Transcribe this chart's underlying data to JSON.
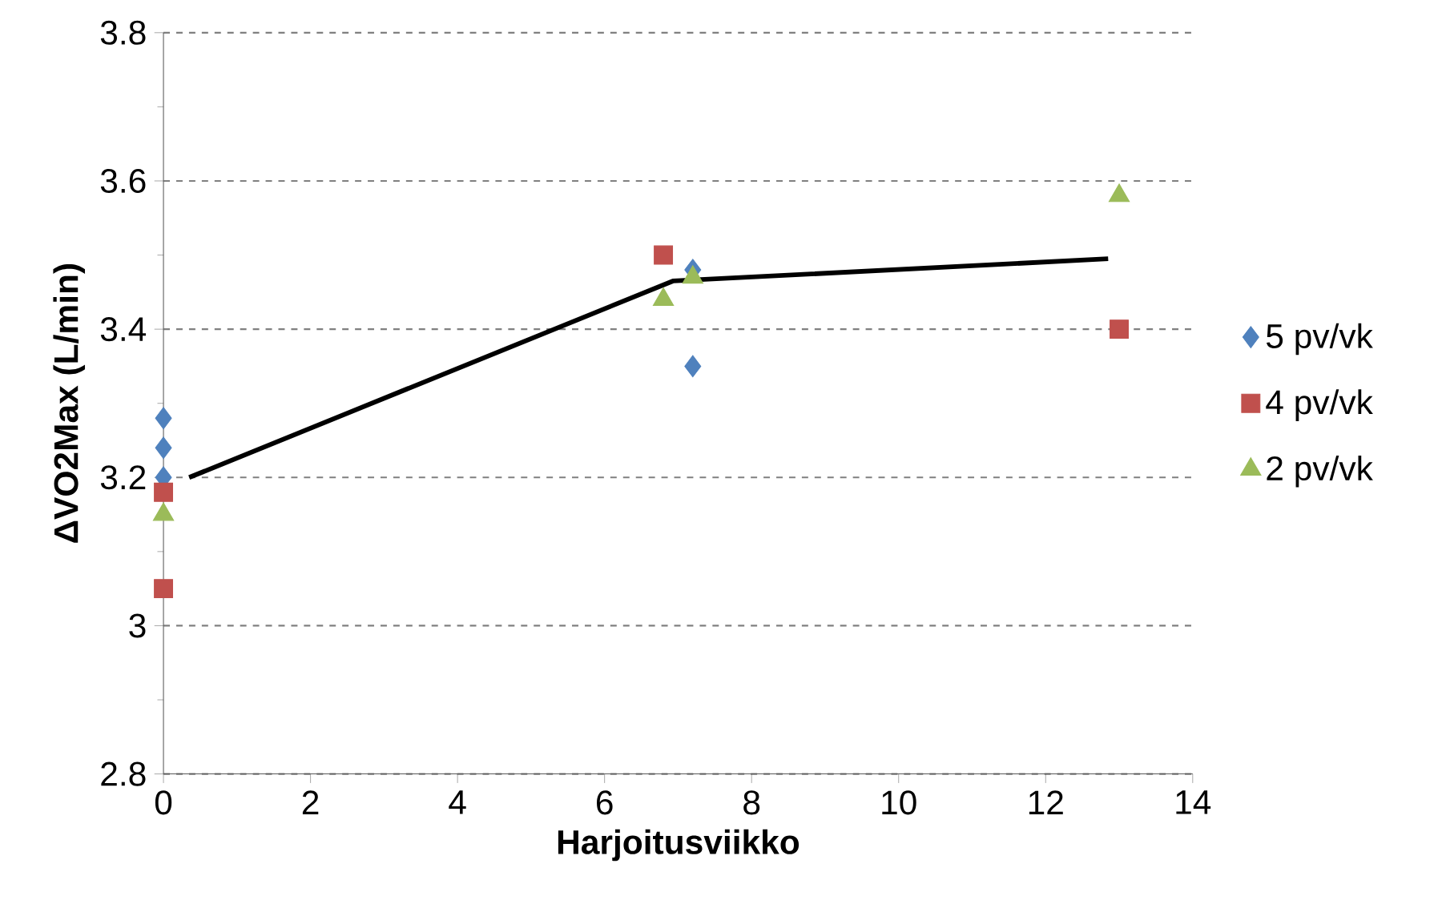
{
  "chart_data": {
    "type": "scatter",
    "xlabel": "Harjoitusviikko",
    "ylabel": "ΔVO2Max (L/min)",
    "xlim": [
      0,
      14
    ],
    "ylim": [
      2.8,
      3.8
    ],
    "xticks": [
      0,
      2,
      4,
      6,
      8,
      10,
      12,
      14
    ],
    "yticks": [
      2.8,
      3,
      3.2,
      3.4,
      3.6,
      3.8
    ],
    "grid": "y",
    "legend": "right",
    "series": [
      {
        "name": "5 pv/vk",
        "color": "#4f81bd",
        "marker": "diamond",
        "x": [
          0,
          0,
          0,
          7.2,
          7.2
        ],
        "values": [
          3.28,
          3.24,
          3.2,
          3.48,
          3.35
        ]
      },
      {
        "name": "4 pv/vk",
        "color": "#c0504d",
        "marker": "square",
        "x": [
          0,
          0,
          6.8,
          13
        ],
        "values": [
          3.18,
          3.05,
          3.5,
          3.4
        ]
      },
      {
        "name": "2 pv/vk",
        "color": "#9bbb59",
        "marker": "triangle",
        "x": [
          0,
          6.8,
          7.2,
          13
        ],
        "values": [
          3.15,
          3.44,
          3.47,
          3.58
        ]
      },
      {
        "type": "line",
        "color": "#000000",
        "marker": "none",
        "line_style": "solid",
        "x": [
          0.35,
          6.93,
          12.85
        ],
        "values": [
          3.2,
          3.465,
          3.495
        ]
      }
    ]
  }
}
